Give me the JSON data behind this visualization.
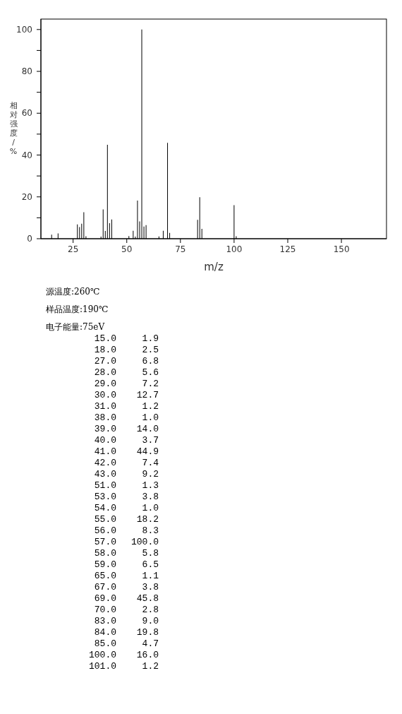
{
  "chart_data": [
    {
      "type": "bar",
      "xlabel": "m/z",
      "ylabel": "相对强度/%",
      "x": [
        15,
        18,
        27,
        28,
        29,
        30,
        31,
        38,
        39,
        40,
        41,
        42,
        43,
        51,
        53,
        54,
        55,
        56,
        57,
        58,
        59,
        65,
        67,
        69,
        70,
        83,
        84,
        85,
        100,
        101
      ],
      "values": [
        1.9,
        2.5,
        6.8,
        5.6,
        7.2,
        12.7,
        1.2,
        1.0,
        14.0,
        3.7,
        44.9,
        7.4,
        9.2,
        1.3,
        3.8,
        1.0,
        18.2,
        8.3,
        100.0,
        5.8,
        6.5,
        1.1,
        3.8,
        45.8,
        2.8,
        9.0,
        19.8,
        4.7,
        16.0,
        1.2
      ],
      "color": "#000000",
      "xlim": [
        10,
        171
      ],
      "xticks": [
        25,
        50,
        75,
        100,
        125,
        150
      ],
      "ylim": [
        0,
        105
      ],
      "yticks": [
        0,
        {
          "value": 10,
          "label": null
        },
        20,
        {
          "value": 30,
          "label": null
        },
        40,
        {
          "value": 50,
          "label": null
        },
        60,
        {
          "value": 70,
          "label": null
        },
        80,
        {
          "value": 90,
          "label": null
        },
        100
      ],
      "grid": false
    },
    {
      "type": "other",
      "annotations": [
        "源温度:260℃",
        "样品温度:190℃",
        "电子能量:75eV",
        "15.0",
        "1.9",
        "18.0",
        "2.5",
        "27.0",
        "6.8",
        "28.0",
        "5.6",
        "29.0",
        "7.2",
        "30.0",
        "12.7",
        "31.0",
        "1.2",
        "38.0",
        "1.0",
        "39.0",
        "14.0",
        "40.0",
        "3.7",
        "41.0",
        "44.9",
        "42.0",
        "7.4",
        "43.0",
        "9.2",
        "51.0",
        "1.3",
        "53.0",
        "3.8",
        "54.0",
        "1.0",
        "55.0",
        "18.2",
        "56.0",
        "8.3",
        "57.0",
        "100.0",
        "58.0",
        "5.8",
        "59.0",
        "6.5",
        "65.0",
        "1.1",
        "67.0",
        "3.8",
        "69.0",
        "45.8",
        "70.0",
        "2.8",
        "83.0",
        "9.0",
        "84.0",
        "19.8",
        "85.0",
        "4.7",
        "100.0",
        "16.0",
        "101.0",
        "1.2"
      ]
    }
  ]
}
